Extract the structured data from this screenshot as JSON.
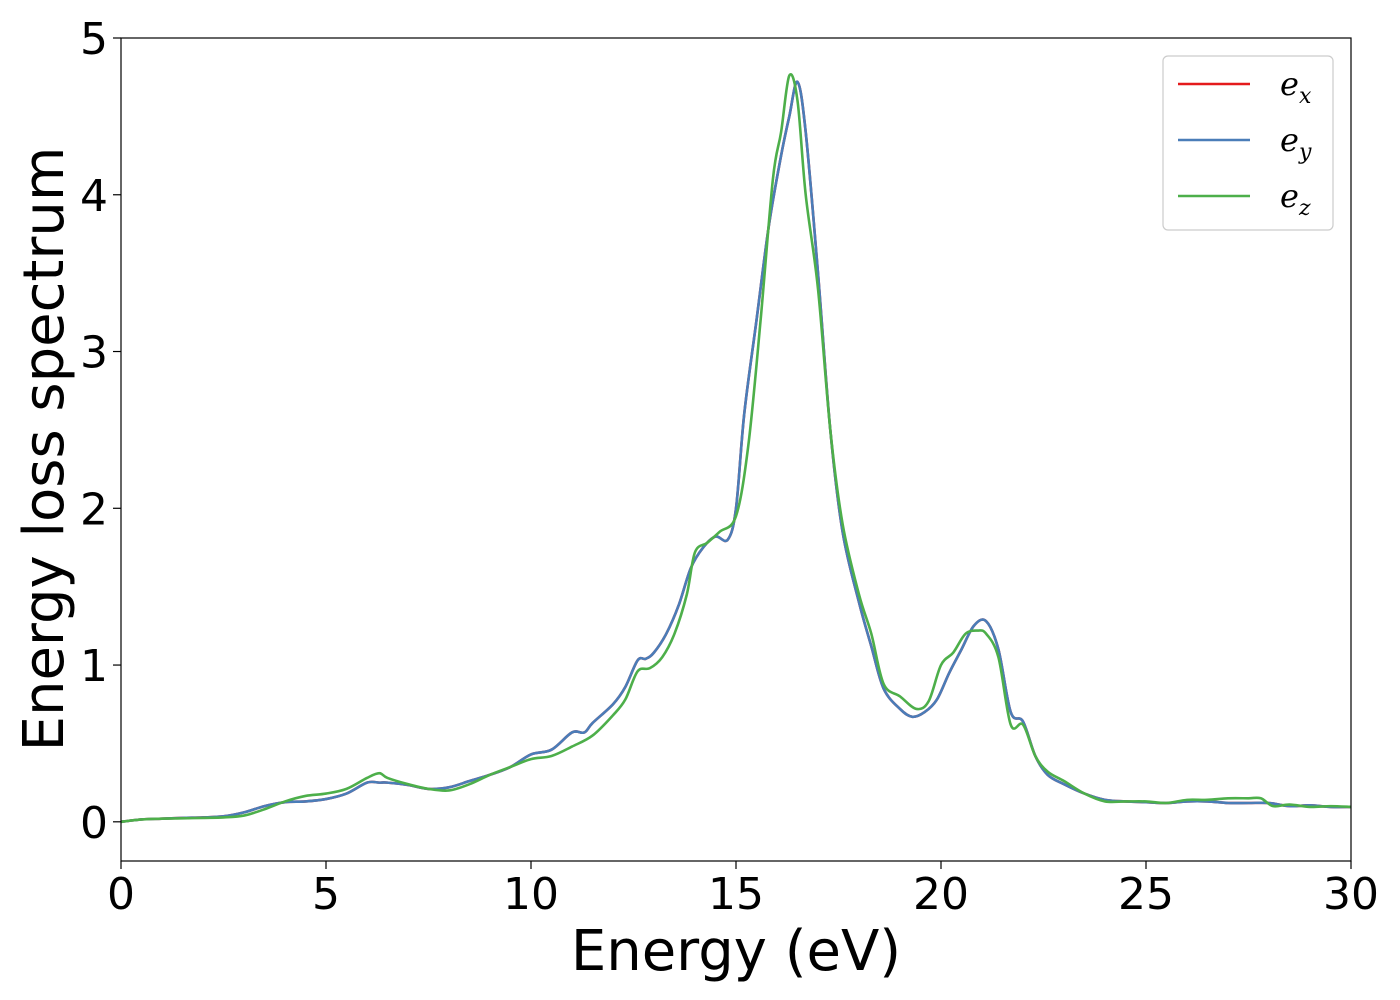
{
  "chart_data": {
    "type": "line",
    "xlabel": "Energy (eV)",
    "ylabel": "Energy loss spectrum",
    "xlim": [
      0,
      30
    ],
    "ylim": [
      -0.25,
      5
    ],
    "xticks": [
      0,
      5,
      10,
      15,
      20,
      25,
      30
    ],
    "yticks": [
      0,
      1,
      2,
      3,
      4,
      5
    ],
    "grid": false,
    "legend_position": "top-right",
    "series": [
      {
        "name": "e_x",
        "legend_base": "e",
        "legend_sub": "x",
        "color": "#e41a1c",
        "points": [
          [
            0,
            0.0
          ],
          [
            0.5,
            0.015
          ],
          [
            1,
            0.02
          ],
          [
            1.5,
            0.025
          ],
          [
            2,
            0.028
          ],
          [
            2.5,
            0.035
          ],
          [
            3,
            0.06
          ],
          [
            3.5,
            0.1
          ],
          [
            4,
            0.125
          ],
          [
            4.5,
            0.13
          ],
          [
            5,
            0.145
          ],
          [
            5.5,
            0.18
          ],
          [
            6,
            0.25
          ],
          [
            6.3,
            0.25
          ],
          [
            6.5,
            0.25
          ],
          [
            7,
            0.235
          ],
          [
            7.5,
            0.21
          ],
          [
            8,
            0.22
          ],
          [
            8.5,
            0.26
          ],
          [
            9,
            0.3
          ],
          [
            9.5,
            0.35
          ],
          [
            10,
            0.43
          ],
          [
            10.5,
            0.46
          ],
          [
            11,
            0.57
          ],
          [
            11.3,
            0.57
          ],
          [
            11.5,
            0.63
          ],
          [
            12,
            0.75
          ],
          [
            12.3,
            0.86
          ],
          [
            12.6,
            1.03
          ],
          [
            12.8,
            1.04
          ],
          [
            13,
            1.08
          ],
          [
            13.3,
            1.2
          ],
          [
            13.6,
            1.38
          ],
          [
            13.9,
            1.62
          ],
          [
            14.2,
            1.75
          ],
          [
            14.5,
            1.82
          ],
          [
            14.8,
            1.8
          ],
          [
            15,
            2.0
          ],
          [
            15.2,
            2.6
          ],
          [
            15.5,
            3.2
          ],
          [
            15.8,
            3.8
          ],
          [
            16.1,
            4.25
          ],
          [
            16.3,
            4.5
          ],
          [
            16.5,
            4.72
          ],
          [
            16.7,
            4.4
          ],
          [
            17,
            3.5
          ],
          [
            17.3,
            2.5
          ],
          [
            17.6,
            1.85
          ],
          [
            18,
            1.4
          ],
          [
            18.3,
            1.12
          ],
          [
            18.6,
            0.85
          ],
          [
            19,
            0.72
          ],
          [
            19.3,
            0.67
          ],
          [
            19.6,
            0.7
          ],
          [
            19.9,
            0.78
          ],
          [
            20.2,
            0.95
          ],
          [
            20.5,
            1.1
          ],
          [
            20.8,
            1.25
          ],
          [
            21.1,
            1.28
          ],
          [
            21.4,
            1.1
          ],
          [
            21.7,
            0.7
          ],
          [
            22,
            0.64
          ],
          [
            22.3,
            0.42
          ],
          [
            22.6,
            0.3
          ],
          [
            23,
            0.24
          ],
          [
            23.5,
            0.18
          ],
          [
            24,
            0.14
          ],
          [
            24.5,
            0.13
          ],
          [
            25,
            0.125
          ],
          [
            25.5,
            0.12
          ],
          [
            26,
            0.13
          ],
          [
            26.5,
            0.13
          ],
          [
            27,
            0.12
          ],
          [
            27.5,
            0.12
          ],
          [
            28,
            0.12
          ],
          [
            28.5,
            0.1
          ],
          [
            29,
            0.105
          ],
          [
            29.5,
            0.095
          ],
          [
            30,
            0.095
          ]
        ]
      },
      {
        "name": "e_y",
        "legend_base": "e",
        "legend_sub": "y",
        "color": "#4a7db8",
        "points": [
          [
            0,
            0.0
          ],
          [
            0.5,
            0.015
          ],
          [
            1,
            0.02
          ],
          [
            1.5,
            0.025
          ],
          [
            2,
            0.028
          ],
          [
            2.5,
            0.035
          ],
          [
            3,
            0.06
          ],
          [
            3.5,
            0.1
          ],
          [
            4,
            0.125
          ],
          [
            4.5,
            0.13
          ],
          [
            5,
            0.145
          ],
          [
            5.5,
            0.18
          ],
          [
            6,
            0.25
          ],
          [
            6.3,
            0.25
          ],
          [
            6.5,
            0.25
          ],
          [
            7,
            0.235
          ],
          [
            7.5,
            0.21
          ],
          [
            8,
            0.22
          ],
          [
            8.5,
            0.26
          ],
          [
            9,
            0.3
          ],
          [
            9.5,
            0.35
          ],
          [
            10,
            0.43
          ],
          [
            10.5,
            0.46
          ],
          [
            11,
            0.57
          ],
          [
            11.3,
            0.57
          ],
          [
            11.5,
            0.63
          ],
          [
            12,
            0.75
          ],
          [
            12.3,
            0.86
          ],
          [
            12.6,
            1.03
          ],
          [
            12.8,
            1.04
          ],
          [
            13,
            1.08
          ],
          [
            13.3,
            1.2
          ],
          [
            13.6,
            1.38
          ],
          [
            13.9,
            1.62
          ],
          [
            14.2,
            1.75
          ],
          [
            14.5,
            1.82
          ],
          [
            14.8,
            1.8
          ],
          [
            15,
            2.0
          ],
          [
            15.2,
            2.6
          ],
          [
            15.5,
            3.2
          ],
          [
            15.8,
            3.8
          ],
          [
            16.1,
            4.25
          ],
          [
            16.3,
            4.5
          ],
          [
            16.5,
            4.72
          ],
          [
            16.7,
            4.4
          ],
          [
            17,
            3.5
          ],
          [
            17.3,
            2.5
          ],
          [
            17.6,
            1.85
          ],
          [
            18,
            1.4
          ],
          [
            18.3,
            1.12
          ],
          [
            18.6,
            0.85
          ],
          [
            19,
            0.72
          ],
          [
            19.3,
            0.67
          ],
          [
            19.6,
            0.7
          ],
          [
            19.9,
            0.78
          ],
          [
            20.2,
            0.95
          ],
          [
            20.5,
            1.1
          ],
          [
            20.8,
            1.25
          ],
          [
            21.1,
            1.28
          ],
          [
            21.4,
            1.1
          ],
          [
            21.7,
            0.7
          ],
          [
            22,
            0.64
          ],
          [
            22.3,
            0.42
          ],
          [
            22.6,
            0.3
          ],
          [
            23,
            0.24
          ],
          [
            23.5,
            0.18
          ],
          [
            24,
            0.14
          ],
          [
            24.5,
            0.13
          ],
          [
            25,
            0.125
          ],
          [
            25.5,
            0.12
          ],
          [
            26,
            0.13
          ],
          [
            26.5,
            0.13
          ],
          [
            27,
            0.12
          ],
          [
            27.5,
            0.12
          ],
          [
            28,
            0.12
          ],
          [
            28.5,
            0.1
          ],
          [
            29,
            0.105
          ],
          [
            29.5,
            0.095
          ],
          [
            30,
            0.095
          ]
        ]
      },
      {
        "name": "e_z",
        "legend_base": "e",
        "legend_sub": "z",
        "color": "#4daf4a",
        "points": [
          [
            0,
            0.0
          ],
          [
            0.5,
            0.015
          ],
          [
            1,
            0.02
          ],
          [
            1.5,
            0.022
          ],
          [
            2,
            0.025
          ],
          [
            2.5,
            0.028
          ],
          [
            3,
            0.04
          ],
          [
            3.5,
            0.08
          ],
          [
            4,
            0.13
          ],
          [
            4.5,
            0.165
          ],
          [
            5,
            0.18
          ],
          [
            5.5,
            0.21
          ],
          [
            6,
            0.28
          ],
          [
            6.3,
            0.31
          ],
          [
            6.5,
            0.28
          ],
          [
            7,
            0.24
          ],
          [
            7.5,
            0.21
          ],
          [
            8,
            0.2
          ],
          [
            8.5,
            0.24
          ],
          [
            9,
            0.3
          ],
          [
            9.5,
            0.35
          ],
          [
            10,
            0.4
          ],
          [
            10.5,
            0.42
          ],
          [
            11,
            0.48
          ],
          [
            11.5,
            0.55
          ],
          [
            12,
            0.68
          ],
          [
            12.3,
            0.78
          ],
          [
            12.6,
            0.96
          ],
          [
            12.9,
            0.98
          ],
          [
            13.2,
            1.05
          ],
          [
            13.5,
            1.2
          ],
          [
            13.8,
            1.45
          ],
          [
            14,
            1.72
          ],
          [
            14.3,
            1.78
          ],
          [
            14.6,
            1.85
          ],
          [
            15,
            1.95
          ],
          [
            15.3,
            2.4
          ],
          [
            15.6,
            3.2
          ],
          [
            15.9,
            4.1
          ],
          [
            16.1,
            4.4
          ],
          [
            16.3,
            4.76
          ],
          [
            16.5,
            4.6
          ],
          [
            16.7,
            4.0
          ],
          [
            17,
            3.4
          ],
          [
            17.3,
            2.5
          ],
          [
            17.6,
            1.9
          ],
          [
            18,
            1.45
          ],
          [
            18.3,
            1.2
          ],
          [
            18.6,
            0.88
          ],
          [
            19,
            0.8
          ],
          [
            19.4,
            0.72
          ],
          [
            19.7,
            0.77
          ],
          [
            20,
            1.0
          ],
          [
            20.3,
            1.08
          ],
          [
            20.6,
            1.2
          ],
          [
            20.9,
            1.22
          ],
          [
            21.1,
            1.2
          ],
          [
            21.4,
            1.05
          ],
          [
            21.7,
            0.62
          ],
          [
            22,
            0.62
          ],
          [
            22.3,
            0.42
          ],
          [
            22.6,
            0.32
          ],
          [
            23,
            0.26
          ],
          [
            23.5,
            0.18
          ],
          [
            24,
            0.13
          ],
          [
            24.5,
            0.13
          ],
          [
            25,
            0.13
          ],
          [
            25.5,
            0.12
          ],
          [
            26,
            0.14
          ],
          [
            26.5,
            0.14
          ],
          [
            27,
            0.15
          ],
          [
            27.5,
            0.15
          ],
          [
            27.8,
            0.15
          ],
          [
            28.1,
            0.1
          ],
          [
            28.5,
            0.11
          ],
          [
            29,
            0.095
          ],
          [
            29.5,
            0.1
          ],
          [
            30,
            0.095
          ]
        ]
      }
    ]
  }
}
